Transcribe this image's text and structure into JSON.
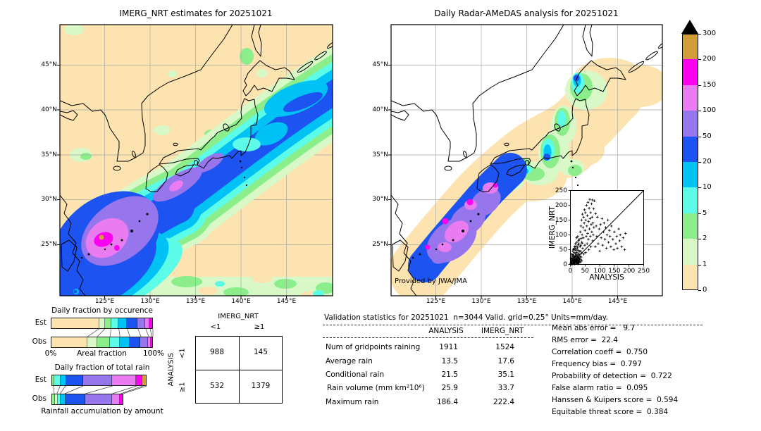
{
  "palette": {
    "wheat": "#fde3b0",
    "palegreen": "#d8f8c8",
    "green": "#8bee8b",
    "cyan": "#5cfce8",
    "deepsky": "#00c2f5",
    "blue": "#1d53f0",
    "mpurple": "#9775ec",
    "violet": "#e87cf0",
    "magenta": "#fc00f0",
    "gold": "#d19d38",
    "over": "#000000"
  },
  "colorbar": {
    "labels": [
      "300",
      "200",
      "150",
      "100",
      "50",
      "20",
      "10",
      "5",
      "2",
      "1",
      "0"
    ],
    "colors_top_to_bottom": [
      "#d19d38",
      "#fc00f0",
      "#e87cf0",
      "#9775ec",
      "#1d53f0",
      "#00c2f5",
      "#5cfce8",
      "#8bee8b",
      "#d8f8c8",
      "#fde3b0"
    ],
    "over_color": "#000000"
  },
  "chart_data": [
    {
      "id": "imerg_map",
      "type": "heatmap",
      "title": "IMERG_NRT estimates for 20251021",
      "units": "mm/day",
      "levels": [
        0,
        1,
        2,
        5,
        10,
        20,
        50,
        100,
        150,
        200,
        300
      ],
      "lat_ticks": [
        "45°N",
        "40°N",
        "35°N",
        "30°N",
        "25°N"
      ],
      "lon_ticks": [
        "125°E",
        "130°E",
        "135°E",
        "140°E",
        "145°E"
      ]
    },
    {
      "id": "radar_map",
      "type": "heatmap",
      "title": "Daily Radar-AMeDAS analysis for 20251021",
      "credit": "Provided by JWA/JMA",
      "units": "mm/day",
      "levels": [
        0,
        1,
        2,
        5,
        10,
        20,
        50,
        100,
        150,
        200,
        300
      ],
      "lat_ticks": [
        "45°N",
        "40°N",
        "35°N",
        "30°N",
        "25°N"
      ],
      "lon_ticks": [
        "125°E",
        "130°E",
        "135°E",
        "140°E",
        "145°E"
      ]
    },
    {
      "id": "occurrence_fraction",
      "type": "bar",
      "stacked": true,
      "orientation": "horizontal",
      "title": "Daily fraction by occurence",
      "xlabel": "Areal fraction",
      "xlim": [
        "0%",
        "100%"
      ],
      "categories": [
        "Est",
        "Obs"
      ],
      "bins_mm_per_day": [
        "0-1",
        "1-2",
        "2-5",
        "5-10",
        "10-20",
        "20-50",
        "50-100",
        "100-150",
        "150-200"
      ],
      "series": [
        {
          "name": "Est",
          "values_pct": [
            47.4,
            5.5,
            6.2,
            7.6,
            8.3,
            10.3,
            7.6,
            4.5,
            2.6
          ],
          "colors": [
            "#fde3b0",
            "#d8f8c8",
            "#8bee8b",
            "#5cfce8",
            "#00c2f5",
            "#1d53f0",
            "#9775ec",
            "#e87cf0",
            "#fc00f0"
          ]
        },
        {
          "name": "Obs",
          "values_pct": [
            35.9,
            9.7,
            12.4,
            9.7,
            9.7,
            11.0,
            7.6,
            2.8,
            1.2
          ],
          "colors": [
            "#fde3b0",
            "#d8f8c8",
            "#8bee8b",
            "#5cfce8",
            "#00c2f5",
            "#1d53f0",
            "#9775ec",
            "#e87cf0",
            "#fc00f0"
          ]
        }
      ]
    },
    {
      "id": "total_rain_fraction",
      "type": "bar",
      "stacked": true,
      "orientation": "horizontal",
      "title": "Daily fraction of total rain",
      "xlabel": "Rainfall accumulation by amount",
      "categories": [
        "Est",
        "Obs"
      ],
      "obs_bar_relative_length": 0.754,
      "series": [
        {
          "name": "Est",
          "bins": [
            "2-5",
            "5-10",
            "10-20",
            "20-50",
            "50-100",
            "100-150",
            "150-200",
            "200-300"
          ],
          "values_pct": [
            2.2,
            7.0,
            5.6,
            18.5,
            30.9,
            25.4,
            6.7,
            3.7
          ],
          "colors": [
            "#8bee8b",
            "#5cfce8",
            "#00c2f5",
            "#1d53f0",
            "#9775ec",
            "#e87cf0",
            "#fc00f0",
            "#d19d38"
          ]
        },
        {
          "name": "Obs",
          "bins": [
            "1-2",
            "2-5",
            "5-10",
            "10-20",
            "20-50",
            "50-100",
            "100-150",
            "150-200"
          ],
          "values_pct": [
            3.0,
            2.7,
            3.5,
            4.9,
            21.7,
            28.2,
            8.9,
            2.5
          ],
          "colors": [
            "#8bee8b",
            "#d8f8c8",
            "#5cfce8",
            "#00c2f5",
            "#1d53f0",
            "#9775ec",
            "#e87cf0",
            "#fc00f0"
          ]
        }
      ]
    },
    {
      "id": "inset_scatter",
      "type": "scatter",
      "xlabel": "ANALYSIS",
      "ylabel": "IMERG_NRT",
      "xlim": [
        0,
        250
      ],
      "ylim": [
        0,
        250
      ],
      "ticks": [
        0,
        50,
        100,
        150,
        200,
        250
      ],
      "marker": "+",
      "diagonal": true,
      "points": [
        [
          1,
          1
        ],
        [
          2,
          3
        ],
        [
          2,
          6
        ],
        [
          2,
          20
        ],
        [
          3,
          2
        ],
        [
          3,
          8
        ],
        [
          3,
          15
        ],
        [
          4,
          1
        ],
        [
          4,
          9
        ],
        [
          4,
          35
        ],
        [
          5,
          5
        ],
        [
          5,
          12
        ],
        [
          5,
          22
        ],
        [
          6,
          4
        ],
        [
          6,
          15
        ],
        [
          6,
          28
        ],
        [
          7,
          2
        ],
        [
          7,
          9
        ],
        [
          7,
          18
        ],
        [
          8,
          6
        ],
        [
          8,
          11
        ],
        [
          8,
          45
        ],
        [
          9,
          7
        ],
        [
          9,
          25
        ],
        [
          9,
          33
        ],
        [
          10,
          2
        ],
        [
          10,
          14
        ],
        [
          10,
          20
        ],
        [
          10,
          52
        ],
        [
          11,
          3
        ],
        [
          11,
          16
        ],
        [
          11,
          30
        ],
        [
          12,
          7
        ],
        [
          12,
          16
        ],
        [
          12,
          50
        ],
        [
          13,
          8
        ],
        [
          13,
          19
        ],
        [
          13,
          40
        ],
        [
          14,
          4
        ],
        [
          14,
          24
        ],
        [
          14,
          60
        ],
        [
          15,
          1
        ],
        [
          15,
          10
        ],
        [
          15,
          26
        ],
        [
          16,
          12
        ],
        [
          16,
          38
        ],
        [
          16,
          55
        ],
        [
          17,
          13
        ],
        [
          17,
          29
        ],
        [
          17,
          70
        ],
        [
          18,
          5
        ],
        [
          18,
          17
        ],
        [
          18,
          48
        ],
        [
          19,
          9
        ],
        [
          19,
          22
        ],
        [
          19,
          62
        ],
        [
          20,
          8
        ],
        [
          20,
          26
        ],
        [
          20,
          33
        ],
        [
          21,
          4
        ],
        [
          21,
          15
        ],
        [
          21,
          90
        ],
        [
          22,
          13
        ],
        [
          22,
          41
        ],
        [
          22,
          75
        ],
        [
          23,
          6
        ],
        [
          23,
          31
        ],
        [
          23,
          52
        ],
        [
          24,
          7
        ],
        [
          24,
          18
        ],
        [
          24,
          58
        ],
        [
          25,
          3
        ],
        [
          25,
          19
        ],
        [
          25,
          28
        ],
        [
          25,
          95
        ],
        [
          26,
          2
        ],
        [
          26,
          12
        ],
        [
          26,
          66
        ],
        [
          27,
          23
        ],
        [
          27,
          36
        ],
        [
          27,
          47
        ],
        [
          28,
          9
        ],
        [
          28,
          14
        ],
        [
          28,
          80
        ],
        [
          29,
          5
        ],
        [
          29,
          21
        ],
        [
          29,
          70
        ],
        [
          30,
          15
        ],
        [
          30,
          34
        ],
        [
          30,
          85
        ],
        [
          31,
          10
        ],
        [
          32,
          20
        ],
        [
          32,
          44
        ],
        [
          33,
          27
        ],
        [
          33,
          60
        ],
        [
          34,
          8
        ],
        [
          34,
          110
        ],
        [
          35,
          45
        ],
        [
          35,
          65
        ],
        [
          36,
          16
        ],
        [
          36,
          130
        ],
        [
          37,
          25
        ],
        [
          37,
          88
        ],
        [
          38,
          38
        ],
        [
          38,
          150
        ],
        [
          39,
          12
        ],
        [
          39,
          75
        ],
        [
          40,
          72
        ],
        [
          40,
          100
        ],
        [
          41,
          170
        ],
        [
          42,
          55
        ],
        [
          43,
          125
        ],
        [
          44,
          90
        ],
        [
          45,
          160
        ],
        [
          46,
          35
        ],
        [
          47,
          140
        ],
        [
          48,
          185
        ],
        [
          49,
          65
        ],
        [
          50,
          115
        ],
        [
          51,
          175
        ],
        [
          52,
          40
        ],
        [
          53,
          150
        ],
        [
          54,
          95
        ],
        [
          55,
          200
        ],
        [
          56,
          130
        ],
        [
          57,
          70
        ],
        [
          58,
          165
        ],
        [
          59,
          105
        ],
        [
          60,
          210
        ],
        [
          61,
          85
        ],
        [
          62,
          145
        ],
        [
          63,
          50
        ],
        [
          64,
          190
        ],
        [
          65,
          120
        ],
        [
          66,
          220
        ],
        [
          67,
          155
        ],
        [
          68,
          95
        ],
        [
          69,
          175
        ],
        [
          70,
          60
        ],
        [
          71,
          135
        ],
        [
          72,
          205
        ],
        [
          73,
          110
        ],
        [
          74,
          160
        ],
        [
          75,
          218
        ],
        [
          76,
          80
        ],
        [
          77,
          140
        ],
        [
          78,
          100
        ],
        [
          79,
          188
        ],
        [
          80,
          125
        ],
        [
          82,
          215
        ],
        [
          85,
          60
        ],
        [
          86,
          172
        ],
        [
          88,
          130
        ],
        [
          90,
          95
        ],
        [
          92,
          160
        ],
        [
          95,
          70
        ],
        [
          98,
          120
        ],
        [
          100,
          45
        ],
        [
          103,
          135
        ],
        [
          105,
          90
        ],
        [
          108,
          155
        ],
        [
          110,
          65
        ],
        [
          113,
          110
        ],
        [
          115,
          140
        ],
        [
          118,
          85
        ],
        [
          120,
          125
        ],
        [
          123,
          55
        ],
        [
          125,
          100
        ],
        [
          128,
          150
        ],
        [
          130,
          75
        ],
        [
          133,
          115
        ],
        [
          135,
          95
        ],
        [
          138,
          60
        ],
        [
          140,
          130
        ],
        [
          145,
          85
        ],
        [
          148,
          50
        ],
        [
          150,
          110
        ],
        [
          155,
          70
        ],
        [
          158,
          95
        ],
        [
          160,
          55
        ],
        [
          165,
          120
        ],
        [
          168,
          80
        ],
        [
          170,
          100
        ],
        [
          175,
          60
        ],
        [
          180,
          90
        ],
        [
          185,
          50
        ],
        [
          188,
          105
        ]
      ]
    },
    {
      "id": "contingency_table",
      "type": "table",
      "col_header": "IMERG_NRT",
      "row_header": "ANALYSIS",
      "col_labels": [
        "<1",
        "≥1"
      ],
      "row_labels": [
        "<1",
        "≥1"
      ],
      "values": [
        [
          "988",
          "145"
        ],
        [
          "532",
          "1379"
        ]
      ]
    },
    {
      "id": "validation_stats",
      "type": "table",
      "title": "Validation statistics for 20251021  n=3044 Valid. grid=0.25° Units=mm/day.",
      "columns": [
        "ANALYSIS",
        "IMERG_NRT"
      ],
      "rows": [
        {
          "label": "Num of gridpoints raining",
          "values": [
            "1911",
            "1524"
          ]
        },
        {
          "label": "Average rain",
          "values": [
            "13.5",
            "17.6"
          ]
        },
        {
          "label": "Conditional rain",
          "values": [
            "21.5",
            "35.1"
          ]
        },
        {
          "label": "Rain volume (mm km²10⁶)",
          "values": [
            "25.9",
            "33.7"
          ]
        },
        {
          "label": "Maximum rain",
          "values": [
            "186.4",
            "222.4"
          ]
        }
      ],
      "metrics": [
        "Mean abs error =   9.7",
        "RMS error =  22.4",
        "Correlation coeff =  0.750",
        "Frequency bias =  0.797",
        "Probability of detection =  0.722",
        "False alarm ratio =  0.095",
        "Hanssen & Kuipers score =  0.594",
        "Equitable threat score =  0.384"
      ]
    }
  ]
}
